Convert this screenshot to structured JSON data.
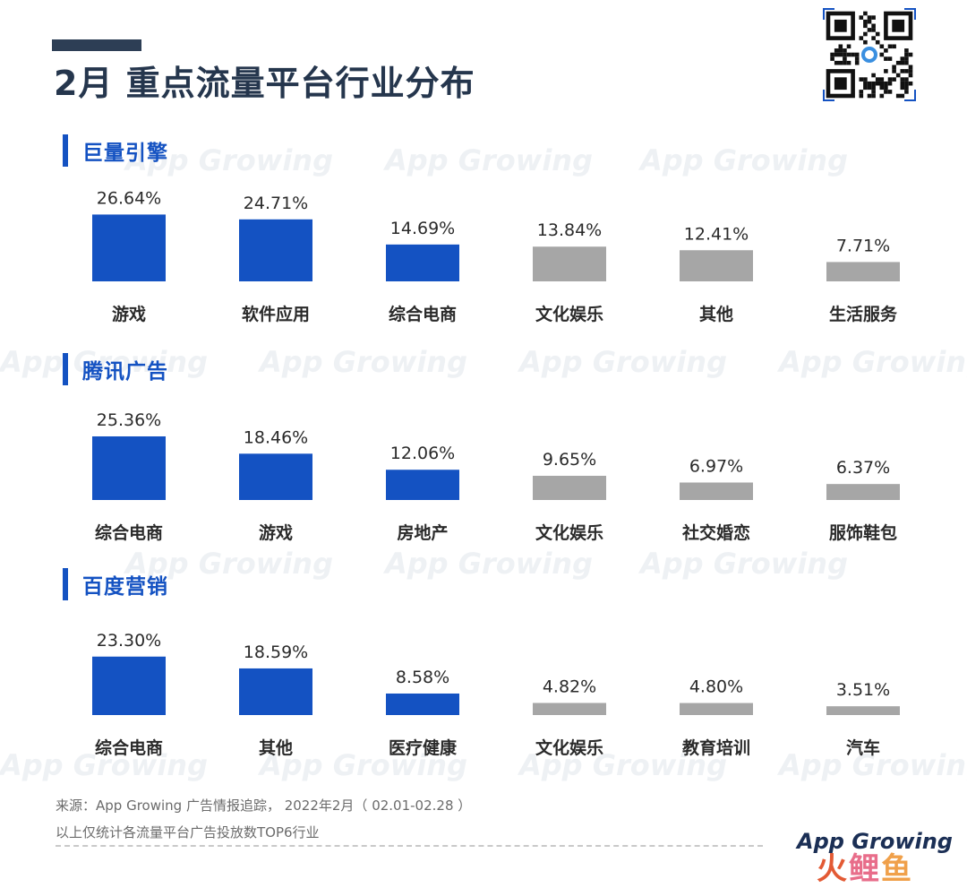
{
  "header": {
    "title": "2月 重点流量平台行业分布"
  },
  "watermark": "App Growing",
  "colors": {
    "blue": "#1452c2",
    "gray": "#a6a6a6",
    "title": "#25364d"
  },
  "chart_data": [
    {
      "type": "bar",
      "title": "巨量引擎",
      "categories": [
        "游戏",
        "软件应用",
        "综合电商",
        "文化娱乐",
        "其他",
        "生活服务"
      ],
      "values": [
        26.64,
        24.71,
        14.69,
        13.84,
        12.41,
        7.71
      ],
      "value_labels": [
        "26.64%",
        "24.71%",
        "14.69%",
        "13.84%",
        "12.41%",
        "7.71%"
      ],
      "bar_colors": [
        "blue",
        "blue",
        "blue",
        "gray",
        "gray",
        "gray"
      ],
      "ylim": [
        0,
        30
      ],
      "grid": false
    },
    {
      "type": "bar",
      "title": "腾讯广告",
      "categories": [
        "综合电商",
        "游戏",
        "房地产",
        "文化娱乐",
        "社交婚恋",
        "服饰鞋包"
      ],
      "values": [
        25.36,
        18.46,
        12.06,
        9.65,
        6.97,
        6.37
      ],
      "value_labels": [
        "25.36%",
        "18.46%",
        "12.06%",
        "9.65%",
        "6.97%",
        "6.37%"
      ],
      "bar_colors": [
        "blue",
        "blue",
        "blue",
        "gray",
        "gray",
        "gray"
      ],
      "ylim": [
        0,
        30
      ],
      "grid": false
    },
    {
      "type": "bar",
      "title": "百度营销",
      "categories": [
        "综合电商",
        "其他",
        "医疗健康",
        "文化娱乐",
        "教育培训",
        "汽车"
      ],
      "values": [
        23.3,
        18.59,
        8.58,
        4.82,
        4.8,
        3.51
      ],
      "value_labels": [
        "23.30%",
        "18.59%",
        "8.58%",
        "4.82%",
        "4.80%",
        "3.51%"
      ],
      "bar_colors": [
        "blue",
        "blue",
        "blue",
        "gray",
        "gray",
        "gray"
      ],
      "ylim": [
        0,
        30
      ],
      "grid": false
    }
  ],
  "footer": {
    "source": "来源：App Growing 广告情报追踪， 2022年2月（ 02.01-02.28 ）",
    "note": "以上仅统计各流量平台广告投放数TOP6行业",
    "brand": "App Growing",
    "brand_cn": [
      "火",
      "鲤",
      "鱼"
    ]
  }
}
